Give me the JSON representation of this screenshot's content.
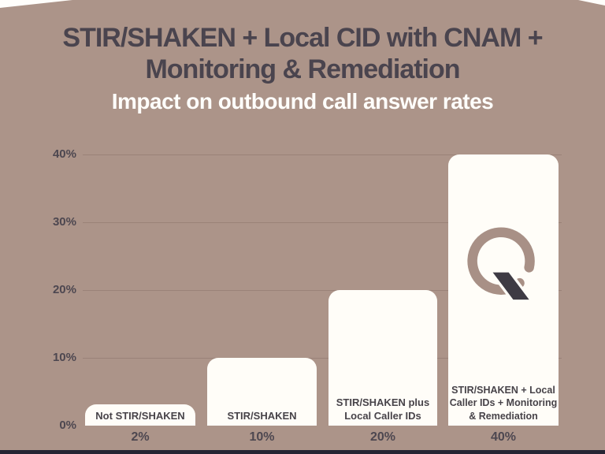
{
  "slide": {
    "title_line1": "STIR/SHAKEN + Local CID with CNAM +",
    "title_line2": "Monitoring & Remediation",
    "subtitle": "Impact on outbound call answer rates"
  },
  "colors": {
    "background": "#ac9489",
    "bar_fill": "#fffdf8",
    "title_text": "#4a444e",
    "subtitle_text": "#fffefb",
    "chart_text": "#4d4750",
    "gridline": "rgba(72,52,45,0.18)",
    "logo_ring": "#a89086",
    "logo_slash": "#3e3b44",
    "bottom_strip": "#252534",
    "corner_slivers": "#fffefb"
  },
  "logo": {
    "name": "Q mark logo"
  },
  "chart_data": {
    "type": "bar",
    "title": "STIR/SHAKEN + Local CID with CNAM + Monitoring & Remediation",
    "subtitle": "Impact on outbound call answer rates",
    "categories": [
      "Not STIR/SHAKEN",
      "STIR/SHAKEN",
      "STIR/SHAKEN plus Local Caller IDs",
      "STIR/SHAKEN + Local Caller IDs + Monitoring & Remediation"
    ],
    "categories_lines": [
      [
        "Not STIR/SHAKEN"
      ],
      [
        "STIR/SHAKEN"
      ],
      [
        "STIR/SHAKEN plus",
        "Local Caller IDs"
      ],
      [
        "STIR/SHAKEN + Local",
        "Caller IDs + Monitoring",
        "& Remediation"
      ]
    ],
    "values": [
      2,
      10,
      20,
      40
    ],
    "value_labels": [
      "2%",
      "10%",
      "20%",
      "40%"
    ],
    "y_ticks": [
      "0%",
      "10%",
      "20%",
      "30%",
      "40%"
    ],
    "y_tick_values": [
      0,
      10,
      20,
      30,
      40
    ],
    "ylim": [
      0,
      40
    ],
    "xlabel": "",
    "ylabel": "",
    "grid": true,
    "legend": false,
    "bar_color": "#fffdf8",
    "orientation": "vertical"
  }
}
